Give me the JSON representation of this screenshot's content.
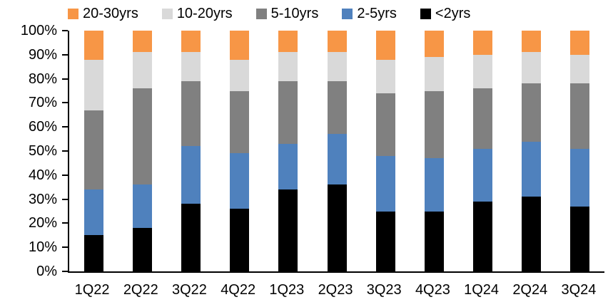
{
  "chart_data": {
    "type": "bar",
    "variant": "100%-stacked-column",
    "title": "",
    "grid": false,
    "axis_color": "#000000",
    "background_color": "#FFFFFF",
    "categories": [
      "1Q22",
      "2Q22",
      "3Q22",
      "4Q22",
      "1Q23",
      "2Q23",
      "3Q23",
      "4Q23",
      "1Q24",
      "2Q24",
      "3Q24"
    ],
    "series": [
      {
        "name": "<2yrs",
        "color": "#000000",
        "values": [
          15,
          18,
          28,
          26,
          34,
          36,
          25,
          25,
          29,
          31,
          27
        ]
      },
      {
        "name": "2-5yrs",
        "color": "#4F81BD",
        "values": [
          19,
          18,
          24,
          23,
          19,
          21,
          23,
          22,
          22,
          23,
          24
        ]
      },
      {
        "name": "5-10yrs",
        "color": "#808080",
        "values": [
          33,
          40,
          27,
          26,
          26,
          22,
          26,
          28,
          25,
          24,
          27
        ]
      },
      {
        "name": "10-20yrs",
        "color": "#D9D9D9",
        "values": [
          21,
          15,
          12,
          13,
          12,
          12,
          14,
          14,
          14,
          13,
          12
        ]
      },
      {
        "name": "20-30yrs",
        "color": "#F79646",
        "values": [
          12,
          9,
          9,
          12,
          9,
          9,
          12,
          11,
          10,
          9,
          10
        ]
      }
    ],
    "legend": {
      "position": "top",
      "order": [
        "20-30yrs",
        "10-20yrs",
        "5-10yrs",
        "2-5yrs",
        "<2yrs"
      ]
    },
    "y_axis": {
      "min": 0,
      "max": 100,
      "step": 10,
      "unit": "%",
      "tick_labels": [
        "0%",
        "10%",
        "20%",
        "30%",
        "40%",
        "50%",
        "60%",
        "70%",
        "80%",
        "90%",
        "100%"
      ]
    },
    "x_axis": {
      "tick_labels": [
        "1Q22",
        "2Q22",
        "3Q22",
        "4Q22",
        "1Q23",
        "2Q23",
        "3Q23",
        "4Q23",
        "1Q24",
        "2Q24",
        "3Q24"
      ]
    }
  }
}
